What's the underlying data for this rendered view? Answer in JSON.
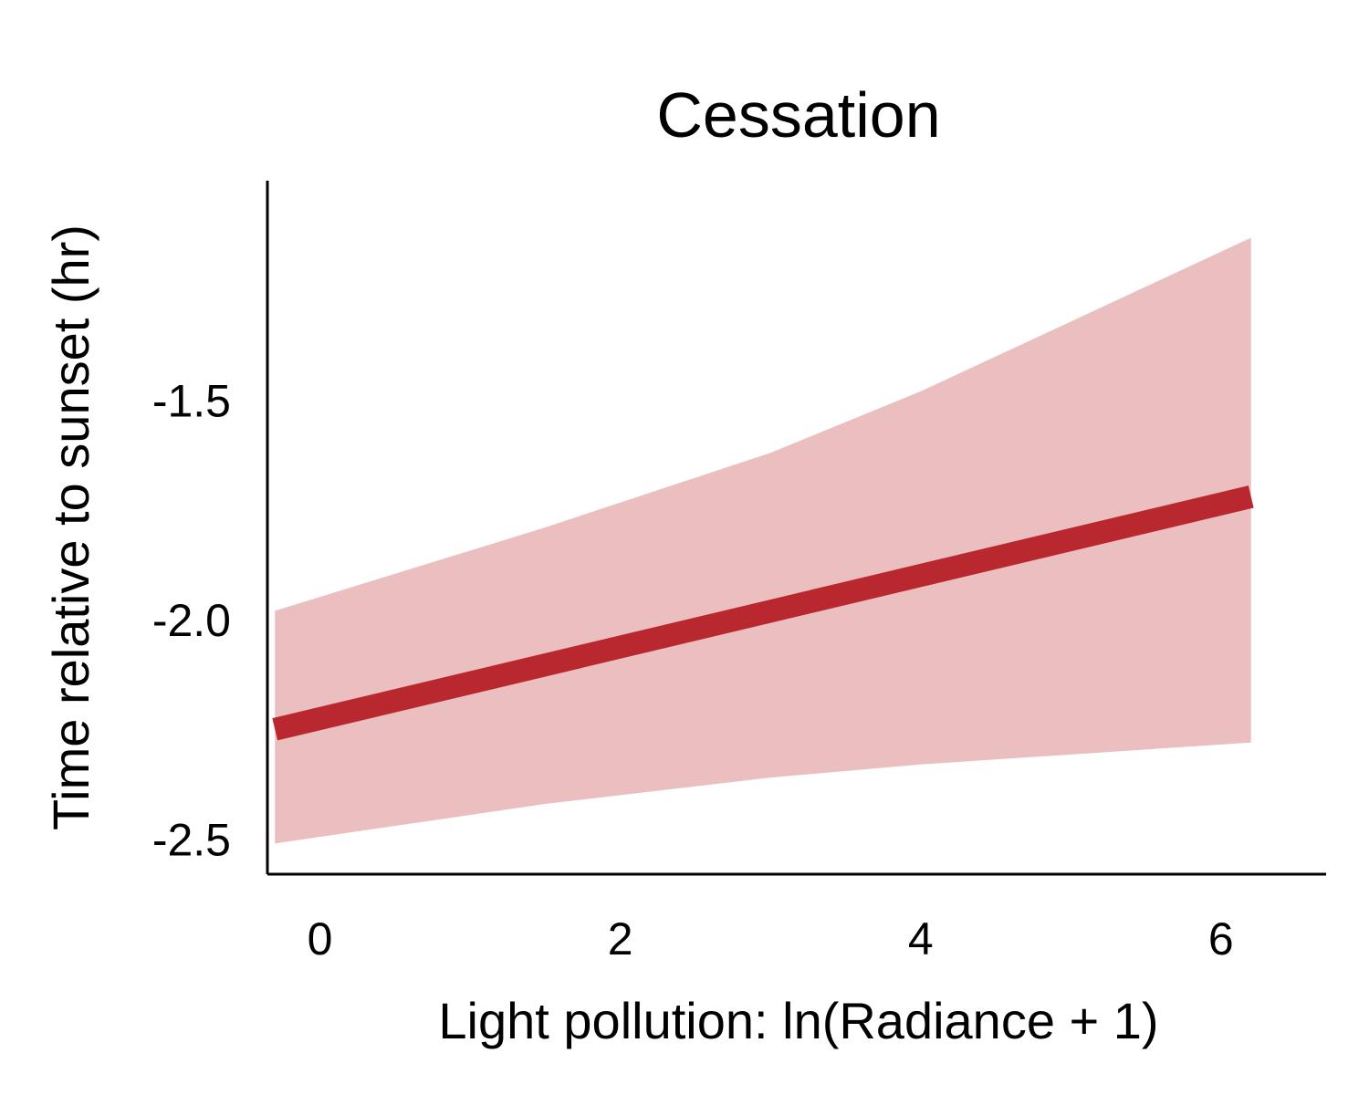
{
  "chart_data": {
    "type": "line",
    "title": "Cessation",
    "xlabel": "Light pollution: ln(Radiance + 1)",
    "ylabel": "Time relative to sunset (hr)",
    "xlim": [
      -0.35,
      6.7
    ],
    "ylim": [
      -2.58,
      -1.0
    ],
    "xticks": [
      0,
      2,
      4,
      6
    ],
    "xtick_labels": [
      "0",
      "2",
      "4",
      "6"
    ],
    "yticks": [
      -2.5,
      -2.0,
      -1.5
    ],
    "ytick_labels": [
      "-2.5",
      "-2.0",
      "-1.5"
    ],
    "grid": false,
    "colors": {
      "line": "#ba282f",
      "band": "#ebbfc0",
      "axis": "#000000"
    },
    "series": [
      {
        "x": [
          -0.3,
          6.2
        ],
        "y": [
          -2.25,
          -1.72
        ]
      }
    ],
    "band": {
      "x": [
        -0.3,
        1.5,
        3.0,
        4.0,
        6.2
      ],
      "lower": [
        -2.51,
        -2.42,
        -2.36,
        -2.33,
        -2.28
      ],
      "upper": [
        -1.98,
        -1.79,
        -1.62,
        -1.48,
        -1.13
      ]
    }
  }
}
